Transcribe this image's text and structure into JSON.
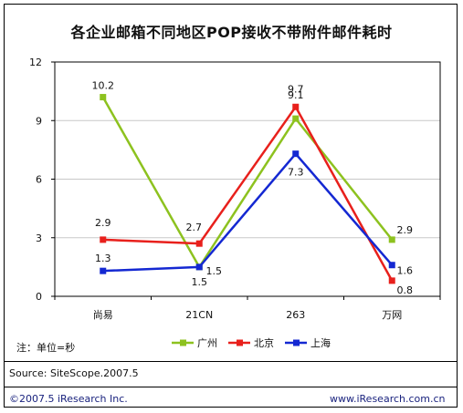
{
  "title": "各企业邮箱不同地区POP接收不带附件邮件耗时",
  "note": "注：单位=秒",
  "source": "Source:  SiteScope.2007.5",
  "copyright": "©2007.5 iResearch Inc.",
  "website": "www.iResearch.com.cn",
  "chart_data": {
    "type": "line",
    "categories": [
      "尚易",
      "21CN",
      "263",
      "万网"
    ],
    "ylim": [
      0,
      12
    ],
    "yticks": [
      0,
      3,
      6,
      9,
      12
    ],
    "grid": true,
    "legend_position": "bottom",
    "series": [
      {
        "name": "广州",
        "color": "#8dc21f",
        "values": [
          10.2,
          1.5,
          9.1,
          2.9
        ],
        "labels": [
          "10.2",
          "1.5",
          "9.1",
          "2.9"
        ]
      },
      {
        "name": "北京",
        "color": "#e8201c",
        "values": [
          2.9,
          2.7,
          9.7,
          0.8
        ],
        "labels": [
          "2.9",
          "2.7",
          "9.7",
          "0.8"
        ]
      },
      {
        "name": "上海",
        "color": "#1428d2",
        "values": [
          1.3,
          1.5,
          7.3,
          1.6
        ],
        "labels": [
          "1.3",
          "1.5",
          "7.3",
          "1.6"
        ]
      }
    ]
  }
}
